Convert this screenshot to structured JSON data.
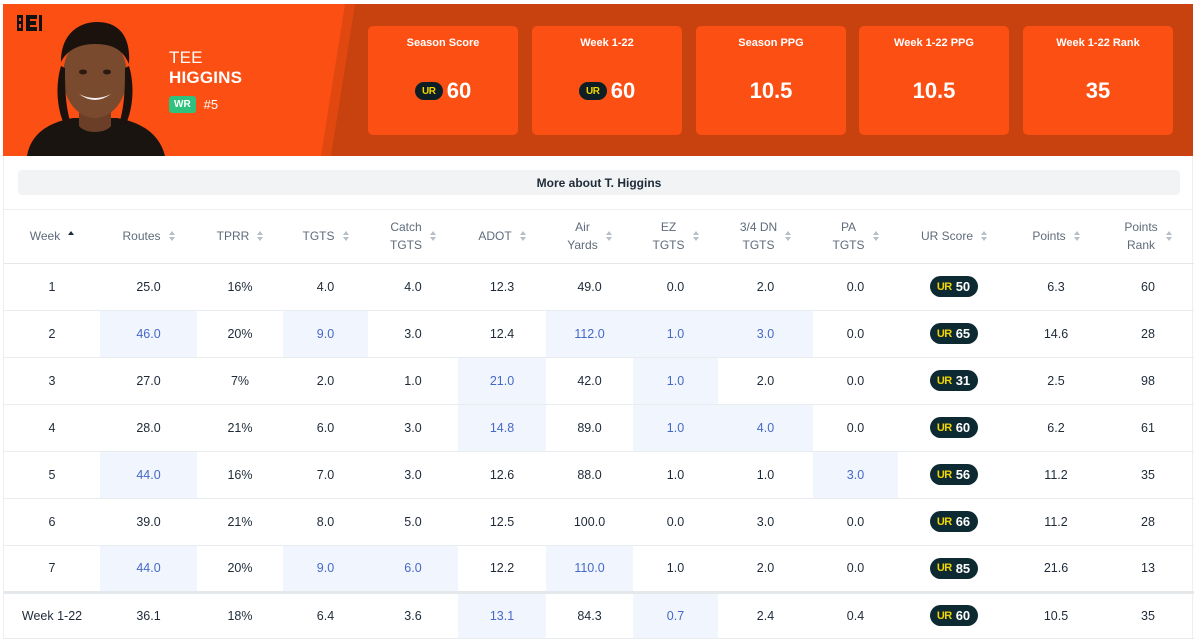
{
  "player": {
    "first_name": "TEE",
    "last_name": "HIGGINS",
    "position": "WR",
    "jersey": "#5",
    "team_logo_icon": "bengals-logo-icon",
    "colors": {
      "primary": "#fb4f14",
      "secondary": "#c8420f",
      "ur_dark": "#0d2a33",
      "ur_yellow": "#f2d400"
    }
  },
  "stats": [
    {
      "label": "Season Score",
      "value": "60",
      "ur_logo": true
    },
    {
      "label": "Week 1-22",
      "value": "60",
      "ur_logo": true
    },
    {
      "label": "Season PPG",
      "value": "10.5",
      "ur_logo": false
    },
    {
      "label": "Week 1-22 PPG",
      "value": "10.5",
      "ur_logo": false
    },
    {
      "label": "Week 1-22 Rank",
      "value": "35",
      "ur_logo": false
    }
  ],
  "ur_logo_text": "UR",
  "more_about": "More about T. Higgins",
  "table": {
    "columns": [
      {
        "line1": "Week",
        "line2": "",
        "sorted": true
      },
      {
        "line1": "Routes",
        "line2": ""
      },
      {
        "line1": "TPRR",
        "line2": ""
      },
      {
        "line1": "TGTS",
        "line2": ""
      },
      {
        "line1": "Catch",
        "line2": "TGTS"
      },
      {
        "line1": "ADOT",
        "line2": ""
      },
      {
        "line1": "Air",
        "line2": "Yards"
      },
      {
        "line1": "EZ",
        "line2": "TGTS"
      },
      {
        "line1": "3/4 DN",
        "line2": "TGTS"
      },
      {
        "line1": "PA",
        "line2": "TGTS"
      },
      {
        "line1": "UR Score",
        "line2": ""
      },
      {
        "line1": "Points",
        "line2": ""
      },
      {
        "line1": "Points",
        "line2": "Rank"
      }
    ],
    "rows": [
      {
        "cells": [
          "1",
          "25.0",
          "16%",
          "4.0",
          "4.0",
          "12.3",
          "49.0",
          "0.0",
          "2.0",
          "0.0",
          "50",
          "6.3",
          "60"
        ],
        "hl": []
      },
      {
        "cells": [
          "2",
          "46.0",
          "20%",
          "9.0",
          "3.0",
          "12.4",
          "112.0",
          "1.0",
          "3.0",
          "0.0",
          "65",
          "14.6",
          "28"
        ],
        "hl": [
          1,
          3,
          6,
          7,
          8
        ]
      },
      {
        "cells": [
          "3",
          "27.0",
          "7%",
          "2.0",
          "1.0",
          "21.0",
          "42.0",
          "1.0",
          "2.0",
          "0.0",
          "31",
          "2.5",
          "98"
        ],
        "hl": [
          5,
          7
        ]
      },
      {
        "cells": [
          "4",
          "28.0",
          "21%",
          "6.0",
          "3.0",
          "14.8",
          "89.0",
          "1.0",
          "4.0",
          "0.0",
          "60",
          "6.2",
          "61"
        ],
        "hl": [
          5,
          7,
          8
        ]
      },
      {
        "cells": [
          "5",
          "44.0",
          "16%",
          "7.0",
          "3.0",
          "12.6",
          "88.0",
          "1.0",
          "1.0",
          "3.0",
          "56",
          "11.2",
          "35"
        ],
        "hl": [
          1,
          9
        ]
      },
      {
        "cells": [
          "6",
          "39.0",
          "21%",
          "8.0",
          "5.0",
          "12.5",
          "100.0",
          "0.0",
          "3.0",
          "0.0",
          "66",
          "11.2",
          "28"
        ],
        "hl": []
      },
      {
        "cells": [
          "7",
          "44.0",
          "20%",
          "9.0",
          "6.0",
          "12.2",
          "110.0",
          "1.0",
          "2.0",
          "0.0",
          "85",
          "21.6",
          "13"
        ],
        "hl": [
          1,
          3,
          4,
          6
        ]
      }
    ],
    "total": {
      "cells": [
        "Week 1-22",
        "36.1",
        "18%",
        "6.4",
        "3.6",
        "13.1",
        "84.3",
        "0.7",
        "2.4",
        "0.4",
        "60",
        "10.5",
        "35"
      ],
      "hl": [
        5,
        7
      ]
    }
  }
}
